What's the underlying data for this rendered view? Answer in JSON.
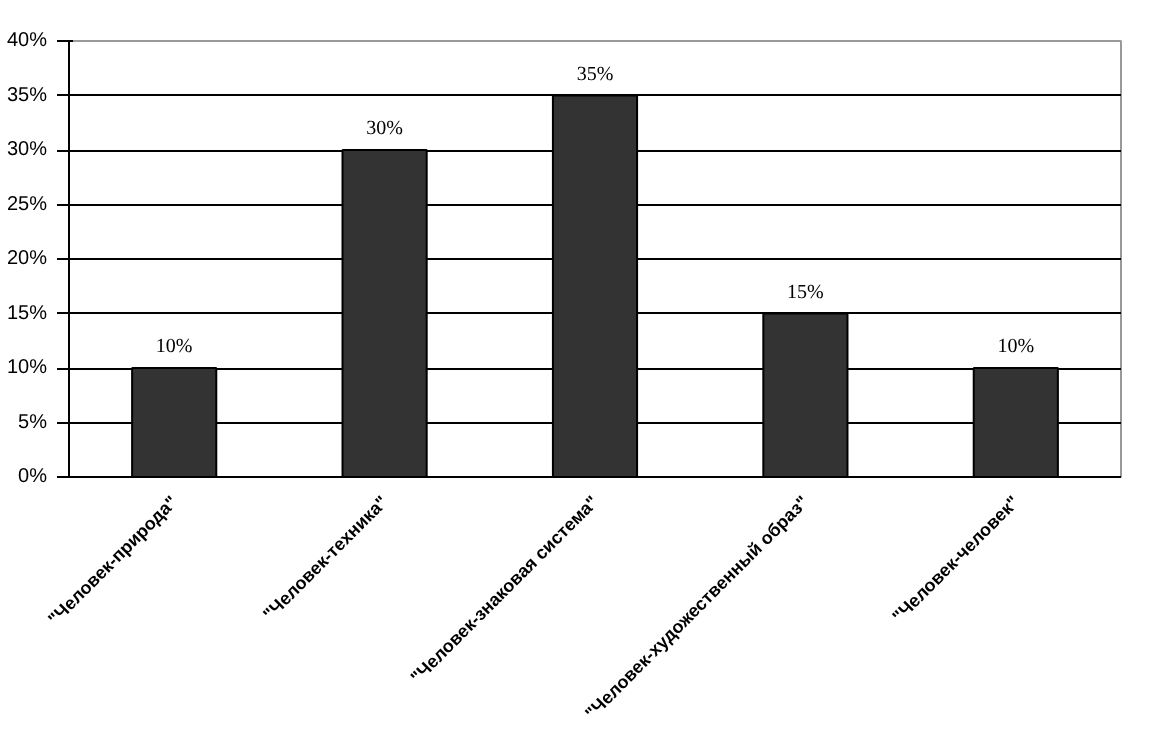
{
  "chart_data": {
    "type": "bar",
    "categories": [
      "\"Человек-природа\"",
      "\"Человек-техника\"",
      "\"Человек-знаковая система\"",
      "\"Человек-художественный образ\"",
      "\"Человек-человек\""
    ],
    "values": [
      10,
      30,
      35,
      15,
      10
    ],
    "value_labels": [
      "10%",
      "30%",
      "35%",
      "15%",
      "10%"
    ],
    "color": "#333333",
    "ylim": [
      0,
      40
    ],
    "yticks": [
      {
        "value": 0,
        "label": "0%"
      },
      {
        "value": 5,
        "label": "5%"
      },
      {
        "value": 10,
        "label": "10%"
      },
      {
        "value": 15,
        "label": "15%"
      },
      {
        "value": 20,
        "label": "20%"
      },
      {
        "value": 25,
        "label": "25%"
      },
      {
        "value": 30,
        "label": "30%"
      },
      {
        "value": 35,
        "label": "35%"
      },
      {
        "value": 40,
        "label": "40%"
      }
    ],
    "grid": "y"
  }
}
